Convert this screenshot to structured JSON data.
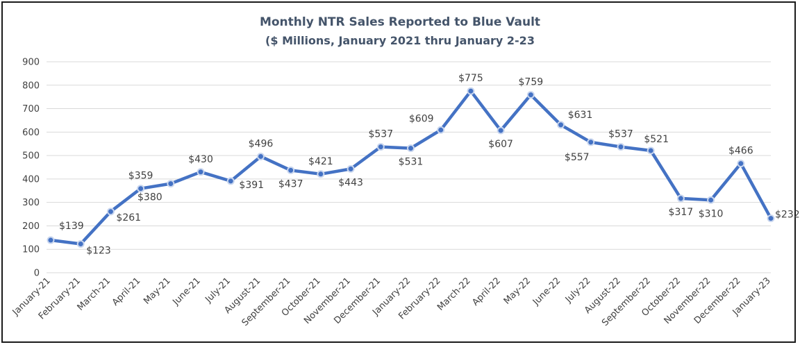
{
  "chart_data": {
    "type": "line",
    "title": "Monthly  NTR Sales Reported to Blue Vault",
    "subtitle": "($ Millions, January 2021 thru January 2-23",
    "xlabel": "",
    "ylabel": "",
    "ylim": [
      0,
      900
    ],
    "yticks": [
      "0",
      "100",
      "200",
      "300",
      "400",
      "500",
      "600",
      "700",
      "800",
      "900"
    ],
    "grid": true,
    "legend": "none",
    "line_color": "#4472c4",
    "categories": [
      "January-21",
      "February-21",
      "March-21",
      "April-21",
      "May-21",
      "June-21",
      "July-21",
      "August-21",
      "September-21",
      "October-21",
      "November-21",
      "December-21",
      "January-22",
      "February-22",
      "March-22",
      "April-22",
      "May-22",
      "June-22",
      "July-22",
      "August-22",
      "September-22",
      "October-22",
      "November-22",
      "December-22",
      "January-23"
    ],
    "values": [
      139,
      123,
      261,
      359,
      380,
      430,
      391,
      496,
      437,
      421,
      443,
      537,
      531,
      609,
      775,
      607,
      759,
      631,
      557,
      537,
      521,
      317,
      310,
      466,
      232
    ],
    "data_labels": [
      "$139",
      "$123",
      "$261",
      "$359",
      "$380",
      "$430",
      "$391",
      "$496",
      "$437",
      "$421",
      "$443",
      "$537",
      "$531",
      "$609",
      "$775",
      "$607",
      "$759",
      "$631",
      "$557",
      "$537",
      "$521",
      "$317",
      "$310",
      "$466",
      "$232"
    ]
  }
}
